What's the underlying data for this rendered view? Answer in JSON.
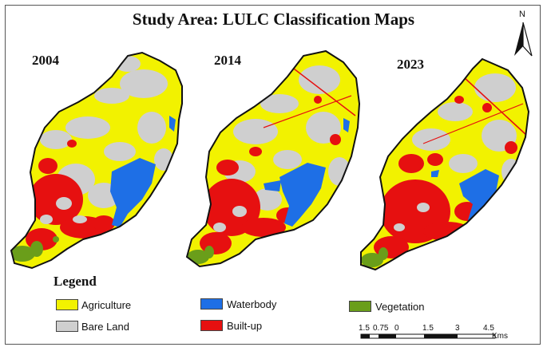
{
  "title": "Study Area: LULC Classification Maps",
  "years": [
    "2004",
    "2014",
    "2023"
  ],
  "north_label": "N",
  "legend": {
    "title": "Legend",
    "items": [
      {
        "label": "Agriculture",
        "color": "#f2f200"
      },
      {
        "label": "Waterbody",
        "color": "#1e6fe6"
      },
      {
        "label": "Vegetation",
        "color": "#6a9e1a"
      },
      {
        "label": "Bare Land",
        "color": "#cfcfcf"
      },
      {
        "label": "Built-up",
        "color": "#e61010"
      }
    ]
  },
  "scale_bar": {
    "ticks": [
      "1.5",
      "0.75",
      "0",
      "1.5",
      "3",
      "4.5"
    ],
    "unit": "Kms"
  }
}
